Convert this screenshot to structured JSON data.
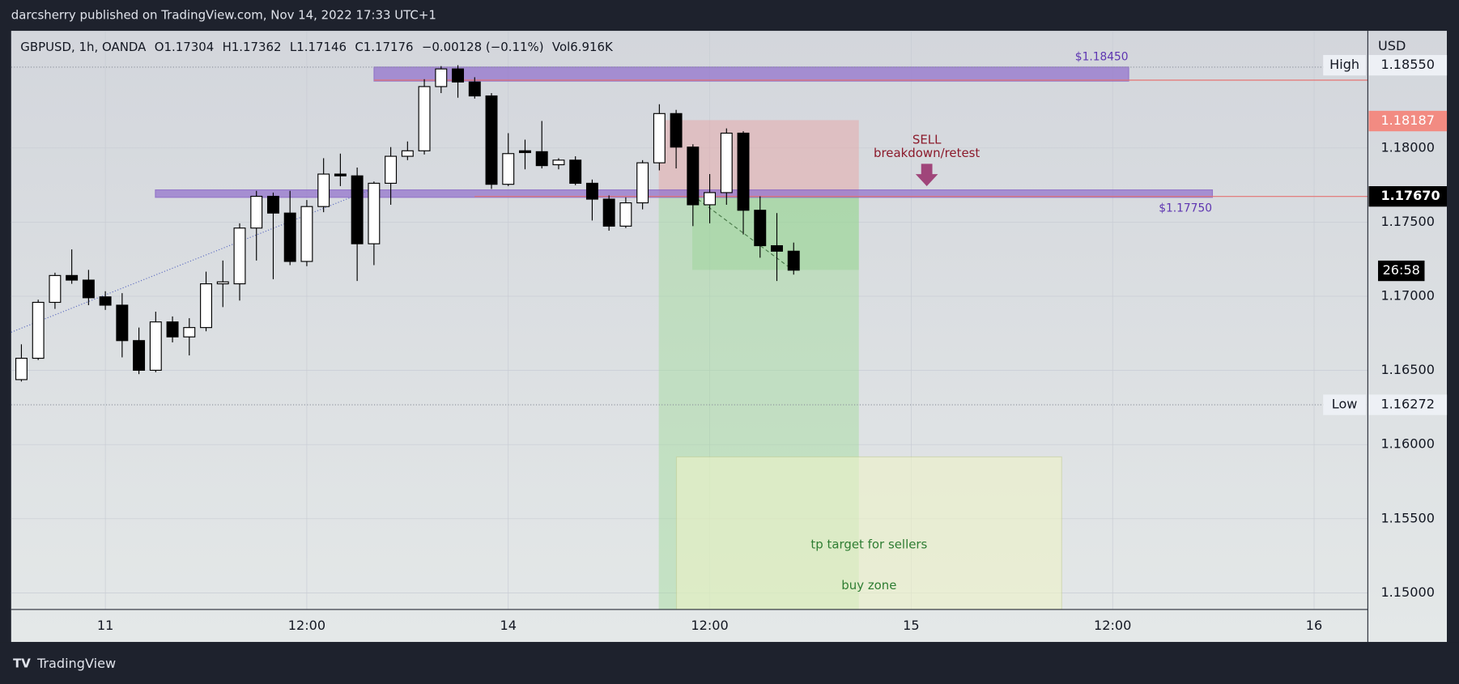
{
  "header": {
    "publisher": "darcsherry published on TradingView.com, Nov 14, 2022 17:33 UTC+1",
    "brand": "TradingView"
  },
  "chart_data": {
    "type": "candlestick",
    "legend": [
      "GBPUSD, 1h, OANDA",
      "O1.17304",
      "H1.17362",
      "L1.17146",
      "C1.17176",
      "−0.00128 (−0.11%)",
      "Vol6.916K"
    ],
    "open": [
      1.16438,
      1.16582,
      1.16959,
      1.1714,
      1.17109,
      1.16996,
      1.1694,
      1.16701,
      1.16501,
      1.16827,
      1.16726,
      1.16789,
      1.17084,
      1.17084,
      1.1746,
      1.17674,
      1.17561,
      1.17235,
      1.17605,
      1.17824,
      1.17812,
      1.17354,
      1.17762,
      1.17944,
      1.17981,
      1.18414,
      1.18533,
      1.18445,
      1.18351,
      1.17755,
      1.17981,
      1.17975,
      1.17887,
      1.17918,
      1.17762,
      1.17655,
      1.17473,
      1.1763,
      1.179,
      1.18232,
      1.18006,
      1.17617,
      1.17699,
      1.181,
      1.1758,
      1.17341,
      1.17304
    ],
    "high": [
      1.16676,
      1.16977,
      1.17159,
      1.17316,
      1.17178,
      1.17034,
      1.17021,
      1.16789,
      1.16896,
      1.16864,
      1.16852,
      1.17166,
      1.17241,
      1.17492,
      1.17711,
      1.17699,
      1.17711,
      1.17649,
      1.17931,
      1.17962,
      1.17868,
      1.17774,
      1.18006,
      1.18044,
      1.18464,
      1.18552,
      1.18558,
      1.18477,
      1.1837,
      1.181,
      1.18056,
      1.18182,
      1.17931,
      1.17944,
      1.17787,
      1.1768,
      1.17667,
      1.17918,
      1.18295,
      1.18257,
      1.18025,
      1.17824,
      1.18132,
      1.18113,
      1.17674,
      1.17561,
      1.17362
    ],
    "low": [
      1.16425,
      1.1657,
      1.16915,
      1.17084,
      1.1694,
      1.16908,
      1.16588,
      1.16475,
      1.16488,
      1.16689,
      1.16601,
      1.16764,
      1.16927,
      1.16971,
      1.17241,
      1.17115,
      1.1721,
      1.17203,
      1.17567,
      1.17743,
      1.17103,
      1.1721,
      1.17617,
      1.17918,
      1.17956,
      1.1837,
      1.18339,
      1.18333,
      1.17724,
      1.17743,
      1.17856,
      1.17862,
      1.17856,
      1.17749,
      1.17511,
      1.17442,
      1.1746,
      1.17586,
      1.17849,
      1.17862,
      1.17473,
      1.17492,
      1.17617,
      1.17417,
      1.1726,
      1.17103,
      1.17146
    ],
    "close": [
      1.16582,
      1.16959,
      1.1714,
      1.17109,
      1.1699,
      1.1694,
      1.16701,
      1.16501,
      1.16827,
      1.16726,
      1.16789,
      1.17084,
      1.17097,
      1.1746,
      1.17674,
      1.17561,
      1.17235,
      1.17605,
      1.17824,
      1.17812,
      1.17354,
      1.17762,
      1.17944,
      1.17981,
      1.18414,
      1.18533,
      1.18445,
      1.18351,
      1.17755,
      1.17962,
      1.17969,
      1.17881,
      1.17918,
      1.17762,
      1.17655,
      1.17473,
      1.1763,
      1.179,
      1.18232,
      1.18006,
      1.17617,
      1.17699,
      1.181,
      1.1758,
      1.17341,
      1.17304,
      1.17176
    ],
    "up_color": "#ffffff",
    "down_color": "#000000",
    "xlim": [
      -0.61,
      80.2
    ],
    "xticks": [
      {
        "value": 5,
        "label": "11"
      },
      {
        "value": 17,
        "label": "12:00"
      },
      {
        "value": 29,
        "label": "14"
      },
      {
        "value": 41,
        "label": "12:00"
      },
      {
        "value": 53,
        "label": "15"
      },
      {
        "value": 65,
        "label": "12:00"
      },
      {
        "value": 77,
        "label": "16"
      }
    ],
    "ylim": [
      1.14888,
      1.1879
    ],
    "yticks": [
      {
        "value": 1.15,
        "label": "1.15000"
      },
      {
        "value": 1.155,
        "label": "1.15500"
      },
      {
        "value": 1.16,
        "label": "1.16000"
      },
      {
        "value": 1.165,
        "label": "1.16500"
      },
      {
        "value": 1.17,
        "label": "1.17000"
      },
      {
        "value": 1.175,
        "label": "1.17500"
      },
      {
        "value": 1.18,
        "label": "1.18000"
      }
    ],
    "currency": "USD",
    "axis_labels": {
      "high_tag": "High",
      "high_value": "1.18550",
      "low_tag": "Low",
      "low_value": "1.16272",
      "alert": "1.18187",
      "line": "1.17670",
      "countdown": "26:58"
    },
    "annotations": {
      "upper_zone": "$1.18450",
      "lower_zone": "$1.17750",
      "sell": "SELL",
      "sell_note": "breakdown/retest",
      "tp": "tp target for sellers",
      "buy": "buy zone"
    }
  }
}
